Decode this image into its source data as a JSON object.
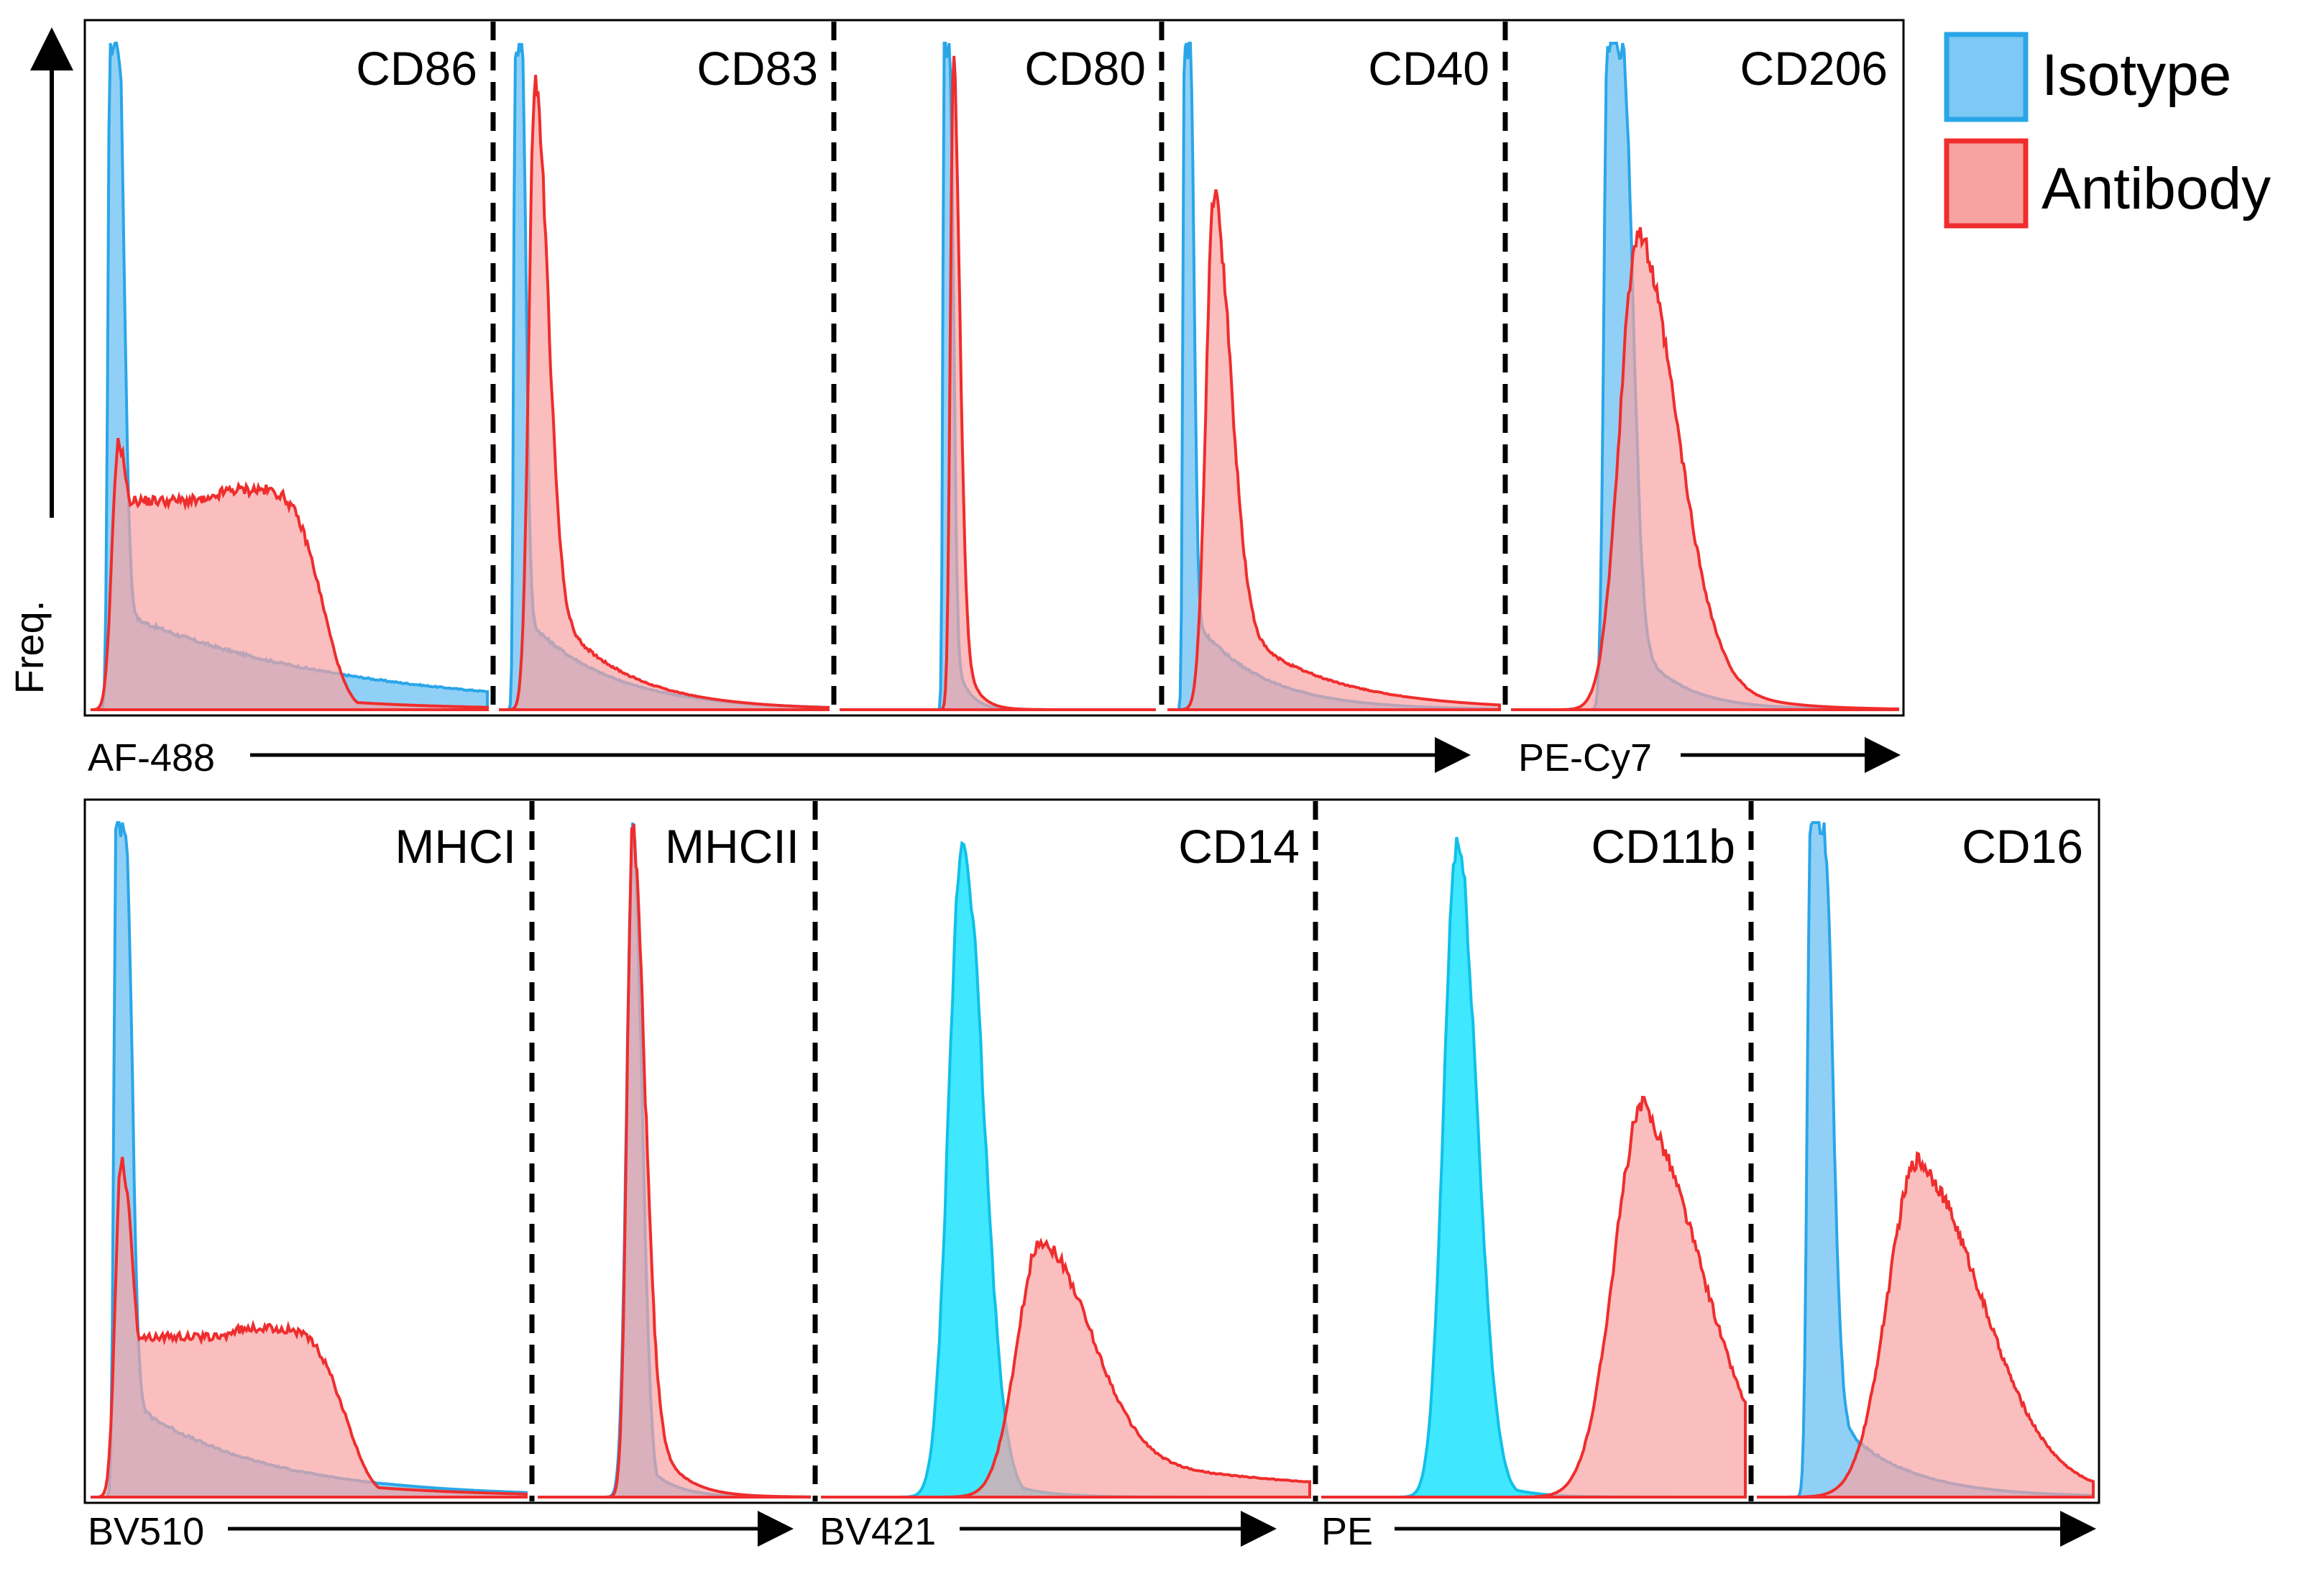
{
  "colors": {
    "isotype_fill": "#7ec8f5",
    "isotype_stroke": "#2aa6e8",
    "isotype_bright_fill": "#1de4ff",
    "isotype_bright_stroke": "#10c0e8",
    "antibody_fill": "#f8a2a2",
    "antibody_stroke": "#ef2d2d",
    "frame": "#000000"
  },
  "legend": {
    "position": "top-right",
    "items": [
      {
        "key": "isotype",
        "label": "Isotype"
      },
      {
        "key": "antibody",
        "label": "Antibody"
      }
    ]
  },
  "y_axis_label": "Freq.",
  "chart_data": [
    {
      "type": "area",
      "panel": "top",
      "channels": [
        {
          "label": "AF-488",
          "panels": [
            "CD86",
            "CD83",
            "CD80",
            "CD40"
          ]
        },
        {
          "label": "PE-Cy7",
          "panels": [
            "CD206"
          ]
        }
      ],
      "subplots": [
        {
          "marker": "CD86",
          "isotype": {
            "peak": 0.06,
            "width": 0.022,
            "height": 1.0,
            "tail": 0.55,
            "plateau": true,
            "bright": false
          },
          "antibody": {
            "shape": "bimodal",
            "peak": 0.07,
            "width": 0.03,
            "height": 0.4,
            "second_peak": 0.4,
            "second_width": 0.2,
            "second_height": 0.33,
            "tail": 0.3
          }
        },
        {
          "marker": "CD83",
          "isotype": {
            "peak": 0.06,
            "width": 0.02,
            "height": 1.0,
            "tail": 0.25,
            "plateau": true,
            "bright": false
          },
          "antibody": {
            "shape": "skewed",
            "peak": 0.11,
            "width": 0.035,
            "height": 0.94,
            "tail": 0.22
          }
        },
        {
          "marker": "CD80",
          "isotype": {
            "peak": 0.34,
            "width": 0.018,
            "height": 1.0,
            "tail": 0.04,
            "plateau": true,
            "bright": false
          },
          "antibody": {
            "shape": "skewed",
            "peak": 0.36,
            "width": 0.018,
            "height": 0.98,
            "tail": 0.04
          }
        },
        {
          "marker": "CD40",
          "isotype": {
            "peak": 0.06,
            "width": 0.018,
            "height": 1.0,
            "tail": 0.2,
            "plateau": true,
            "bright": false
          },
          "antibody": {
            "shape": "skewed",
            "peak": 0.14,
            "width": 0.045,
            "height": 0.77,
            "tail": 0.28
          }
        },
        {
          "marker": "CD206",
          "isotype": {
            "peak": 0.27,
            "width": 0.04,
            "height": 1.0,
            "tail": 0.12,
            "plateau": true,
            "bright": false
          },
          "antibody": {
            "shape": "skewed",
            "peak": 0.33,
            "width": 0.09,
            "height": 0.72,
            "tail": 0.14
          }
        }
      ]
    },
    {
      "type": "area",
      "panel": "bottom",
      "channels": [
        {
          "label": "BV510",
          "panels": [
            "MHCI",
            "MHCII"
          ]
        },
        {
          "label": "BV421",
          "panels": [
            "CD14"
          ]
        },
        {
          "label": "PE",
          "panels": [
            "CD11b",
            "CD16"
          ]
        }
      ],
      "subplots": [
        {
          "marker": "MHCI",
          "isotype": {
            "peak": 0.07,
            "width": 0.022,
            "height": 1.0,
            "tail": 0.3,
            "plateau": true,
            "bright": false
          },
          "antibody": {
            "shape": "bimodal",
            "peak": 0.07,
            "width": 0.025,
            "height": 0.5,
            "second_peak": 0.4,
            "second_width": 0.2,
            "second_height": 0.25,
            "tail": 0.3
          }
        },
        {
          "marker": "MHCII",
          "isotype": {
            "peak": 0.35,
            "width": 0.04,
            "height": 0.98,
            "tail": 0.1,
            "plateau": false,
            "bright": false
          },
          "antibody": {
            "shape": "skewed",
            "peak": 0.35,
            "width": 0.04,
            "height": 0.99,
            "tail": 0.1
          }
        },
        {
          "marker": "CD14",
          "isotype": {
            "peak": 0.29,
            "width": 0.05,
            "height": 0.97,
            "tail": 0.07,
            "plateau": false,
            "bright": true
          },
          "antibody": {
            "shape": "skewed",
            "peak": 0.45,
            "width": 0.09,
            "height": 0.38,
            "tail": 0.45
          }
        },
        {
          "marker": "CD11b",
          "isotype": {
            "peak": 0.32,
            "width": 0.055,
            "height": 0.97,
            "tail": 0.07,
            "plateau": false,
            "bright": true
          },
          "antibody": {
            "shape": "skewed",
            "peak": 0.76,
            "width": 0.13,
            "height": 0.58,
            "tail": 0.12
          }
        },
        {
          "marker": "CD16",
          "isotype": {
            "peak": 0.18,
            "width": 0.04,
            "height": 1.0,
            "tail": 0.2,
            "plateau": true,
            "bright": false
          },
          "antibody": {
            "shape": "skewed",
            "peak": 0.48,
            "width": 0.17,
            "height": 0.5,
            "tail": 0.25
          }
        }
      ]
    }
  ]
}
